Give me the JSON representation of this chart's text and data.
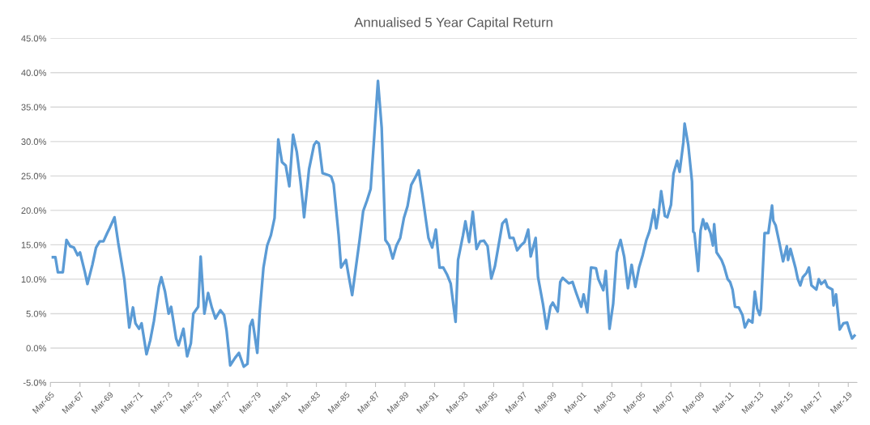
{
  "chart_data": {
    "type": "line",
    "title": "Annualised 5 Year Capital Return",
    "x": [
      "1965-05",
      "1965-07",
      "1965-09",
      "1966-01",
      "1966-04",
      "1966-07",
      "1966-10",
      "1967-01",
      "1967-03",
      "1967-07",
      "1967-09",
      "1968-01",
      "1968-04",
      "1968-07",
      "1968-10",
      "1969-01",
      "1969-03",
      "1969-07",
      "1969-10",
      "1970-01",
      "1970-03",
      "1970-07",
      "1970-10",
      "1970-12",
      "1971-03",
      "1971-05",
      "1971-09",
      "1971-12",
      "1972-03",
      "1972-07",
      "1972-09",
      "1972-12",
      "1973-03",
      "1973-05",
      "1973-09",
      "1973-11",
      "1974-03",
      "1974-06",
      "1974-09",
      "1974-11",
      "1975-03",
      "1975-05",
      "1975-08",
      "1975-11",
      "1976-02",
      "1976-05",
      "1976-09",
      "1976-12",
      "1977-02",
      "1977-05",
      "1977-09",
      "1977-12",
      "1978-04",
      "1978-07",
      "1978-09",
      "1978-11",
      "1979-03",
      "1979-05",
      "1979-08",
      "1979-11",
      "1980-02",
      "1980-05",
      "1980-08",
      "1980-11",
      "1981-02",
      "1981-05",
      "1981-08",
      "1981-11",
      "1982-02",
      "1982-04",
      "1982-05",
      "1982-09",
      "1983-01",
      "1983-03",
      "1983-05",
      "1983-08",
      "1984-01",
      "1984-03",
      "1984-05",
      "1984-09",
      "1984-11",
      "1985-03",
      "1985-05",
      "1985-08",
      "1985-11",
      "1986-02",
      "1986-05",
      "1986-08",
      "1986-11",
      "1987-02",
      "1987-05",
      "1987-08",
      "1987-11",
      "1988-02",
      "1988-05",
      "1988-08",
      "1988-11",
      "1989-02",
      "1989-05",
      "1989-08",
      "1989-11",
      "1990-02",
      "1990-05",
      "1990-08",
      "1990-10",
      "1991-01",
      "1991-04",
      "1991-07",
      "1991-10",
      "1992-01",
      "1992-04",
      "1992-08",
      "1992-10",
      "1993-02",
      "1993-04",
      "1993-07",
      "1993-10",
      "1994-01",
      "1994-04",
      "1994-07",
      "1994-10",
      "1995-01",
      "1995-04",
      "1995-08",
      "1995-10",
      "1996-01",
      "1996-04",
      "1996-07",
      "1996-10",
      "1997-01",
      "1997-04",
      "1997-07",
      "1997-09",
      "1998-01",
      "1998-03",
      "1998-07",
      "1998-10",
      "1999-01",
      "1999-03",
      "1999-07",
      "1999-09",
      "1999-11",
      "2000-04",
      "2000-07",
      "2000-10",
      "2001-02",
      "2001-04",
      "2001-07",
      "2001-10",
      "2002-02",
      "2002-04",
      "2002-08",
      "2002-10",
      "2003-01",
      "2003-04",
      "2003-07",
      "2003-10",
      "2004-01",
      "2004-04",
      "2004-07",
      "2004-10",
      "2005-01",
      "2005-04",
      "2005-07",
      "2005-09",
      "2005-10",
      "2006-01",
      "2006-03",
      "2006-05",
      "2006-07",
      "2006-10",
      "2006-12",
      "2007-03",
      "2007-05",
      "2007-08",
      "2007-10",
      "2008-01",
      "2008-02",
      "2008-05",
      "2008-08",
      "2008-09",
      "2008-10",
      "2009-01",
      "2009-03",
      "2009-05",
      "2009-07",
      "2009-08",
      "2009-11",
      "2010-01",
      "2010-02",
      "2010-04",
      "2010-08",
      "2010-10",
      "2011-01",
      "2011-03",
      "2011-05",
      "2011-07",
      "2011-10",
      "2012-01",
      "2012-03",
      "2012-06",
      "2012-09",
      "2012-11",
      "2013-01",
      "2013-03",
      "2013-04",
      "2013-07",
      "2013-10",
      "2014-01",
      "2014-02",
      "2014-04",
      "2014-07",
      "2014-10",
      "2015-01",
      "2015-02",
      "2015-04",
      "2015-08",
      "2015-10",
      "2015-12",
      "2016-02",
      "2016-05",
      "2016-07",
      "2016-09",
      "2017-01",
      "2017-03",
      "2017-05",
      "2017-08",
      "2017-10",
      "2018-02",
      "2018-03",
      "2018-05",
      "2018-08",
      "2018-11",
      "2019-02",
      "2019-04",
      "2019-06",
      "2019-08"
    ],
    "series": [
      {
        "color": "#5b9bd5",
        "values": [
          13.2,
          13.2,
          11.0,
          11.0,
          15.7,
          14.8,
          14.6,
          13.5,
          13.9,
          11.0,
          9.3,
          12.1,
          14.6,
          15.5,
          15.5,
          16.7,
          17.4,
          19.0,
          15.3,
          12.1,
          10.0,
          3.0,
          5.9,
          3.6,
          2.8,
          3.6,
          -0.9,
          1.1,
          3.9,
          8.9,
          10.3,
          8.2,
          5.0,
          6.0,
          1.4,
          0.4,
          2.8,
          -1.2,
          0.7,
          5.0,
          6.0,
          13.3,
          5.0,
          8.0,
          5.9,
          4.3,
          5.5,
          4.8,
          2.5,
          -2.5,
          -1.4,
          -0.7,
          -2.7,
          -2.3,
          3.2,
          4.1,
          -0.7,
          5.3,
          11.7,
          14.9,
          16.4,
          18.9,
          30.3,
          27.0,
          26.5,
          23.5,
          31.0,
          28.5,
          24.2,
          21.0,
          19.0,
          26.0,
          29.5,
          30.0,
          29.7,
          25.4,
          25.1,
          24.9,
          23.8,
          16.4,
          11.7,
          12.8,
          10.7,
          7.7,
          11.7,
          15.7,
          19.9,
          21.4,
          23.1,
          31.0,
          38.8,
          32.0,
          15.7,
          14.9,
          13.0,
          14.9,
          16.0,
          18.9,
          20.6,
          23.7,
          24.7,
          25.8,
          22.4,
          18.5,
          16.0,
          14.6,
          17.2,
          11.7,
          11.7,
          10.7,
          9.4,
          3.8,
          12.8,
          16.4,
          18.4,
          15.4,
          19.8,
          14.4,
          15.5,
          15.6,
          14.8,
          10.1,
          11.9,
          16.0,
          18.1,
          18.7,
          16.0,
          16.0,
          14.2,
          14.9,
          15.4,
          17.2,
          13.3,
          16.0,
          10.3,
          6.4,
          2.8,
          6.0,
          6.6,
          5.3,
          9.6,
          10.2,
          9.4,
          9.6,
          8.0,
          6.0,
          7.8,
          5.2,
          11.7,
          11.6,
          10.0,
          8.4,
          11.2,
          2.8,
          6.4,
          13.9,
          15.7,
          13.2,
          8.7,
          12.1,
          8.9,
          11.7,
          13.5,
          15.7,
          16.7,
          17.3,
          20.1,
          17.4,
          19.6,
          22.8,
          19.2,
          19.0,
          20.8,
          25.3,
          27.2,
          25.6,
          29.9,
          32.6,
          29.5,
          24.2,
          16.9,
          16.7,
          11.2,
          17.1,
          18.7,
          17.3,
          18.1,
          16.7,
          14.9,
          18.0,
          13.9,
          12.8,
          11.9,
          10.0,
          9.6,
          8.5,
          6.0,
          5.9,
          4.8,
          3.0,
          4.1,
          3.7,
          8.2,
          5.7,
          4.8,
          5.7,
          16.7,
          16.7,
          20.7,
          18.5,
          17.8,
          15.3,
          12.6,
          14.8,
          12.8,
          14.4,
          11.7,
          10.0,
          9.1,
          10.3,
          10.9,
          11.7,
          9.1,
          8.5,
          10.0,
          9.3,
          9.8,
          8.9,
          8.5,
          6.2,
          7.8,
          2.7,
          3.6,
          3.7,
          2.5,
          1.4,
          1.8
        ]
      }
    ],
    "xlim": [
      "1965-03",
      "2019-10"
    ],
    "xticks": [
      {
        "value": "1965-03",
        "label": "Mar-65"
      },
      {
        "value": "1967-03",
        "label": "Mar-67"
      },
      {
        "value": "1969-03",
        "label": "Mar-69"
      },
      {
        "value": "1971-03",
        "label": "Mar-71"
      },
      {
        "value": "1973-03",
        "label": "Mar-73"
      },
      {
        "value": "1975-03",
        "label": "Mar-75"
      },
      {
        "value": "1977-03",
        "label": "Mar-77"
      },
      {
        "value": "1979-03",
        "label": "Mar-79"
      },
      {
        "value": "1981-03",
        "label": "Mar-81"
      },
      {
        "value": "1983-03",
        "label": "Mar-83"
      },
      {
        "value": "1985-03",
        "label": "Mar-85"
      },
      {
        "value": "1987-03",
        "label": "Mar-87"
      },
      {
        "value": "1989-03",
        "label": "Mar-89"
      },
      {
        "value": "1991-03",
        "label": "Mar-91"
      },
      {
        "value": "1993-03",
        "label": "Mar-93"
      },
      {
        "value": "1995-03",
        "label": "Mar-95"
      },
      {
        "value": "1997-03",
        "label": "Mar-97"
      },
      {
        "value": "1999-03",
        "label": "Mar-99"
      },
      {
        "value": "2001-03",
        "label": "Mar-01"
      },
      {
        "value": "2003-03",
        "label": "Mar-03"
      },
      {
        "value": "2005-03",
        "label": "Mar-05"
      },
      {
        "value": "2007-03",
        "label": "Mar-07"
      },
      {
        "value": "2009-03",
        "label": "Mar-09"
      },
      {
        "value": "2011-03",
        "label": "Mar-11"
      },
      {
        "value": "2013-03",
        "label": "Mar-13"
      },
      {
        "value": "2015-03",
        "label": "Mar-15"
      },
      {
        "value": "2017-03",
        "label": "Mar-17"
      },
      {
        "value": "2019-03",
        "label": "Mar-19"
      }
    ],
    "ylim": [
      -5,
      45
    ],
    "yticks": [
      {
        "value": -5,
        "label": "-5.0%"
      },
      {
        "value": 0,
        "label": "0.0%"
      },
      {
        "value": 5,
        "label": "5.0%"
      },
      {
        "value": 10,
        "label": "10.0%"
      },
      {
        "value": 15,
        "label": "15.0%"
      },
      {
        "value": 20,
        "label": "20.0%"
      },
      {
        "value": 25,
        "label": "25.0%"
      },
      {
        "value": 30,
        "label": "30.0%"
      },
      {
        "value": 35,
        "label": "35.0%"
      },
      {
        "value": 40,
        "label": "40.0%"
      },
      {
        "value": 45,
        "label": "45.0%"
      }
    ],
    "grid": "y",
    "legend": false,
    "marker": "none",
    "line_style": "solid"
  }
}
